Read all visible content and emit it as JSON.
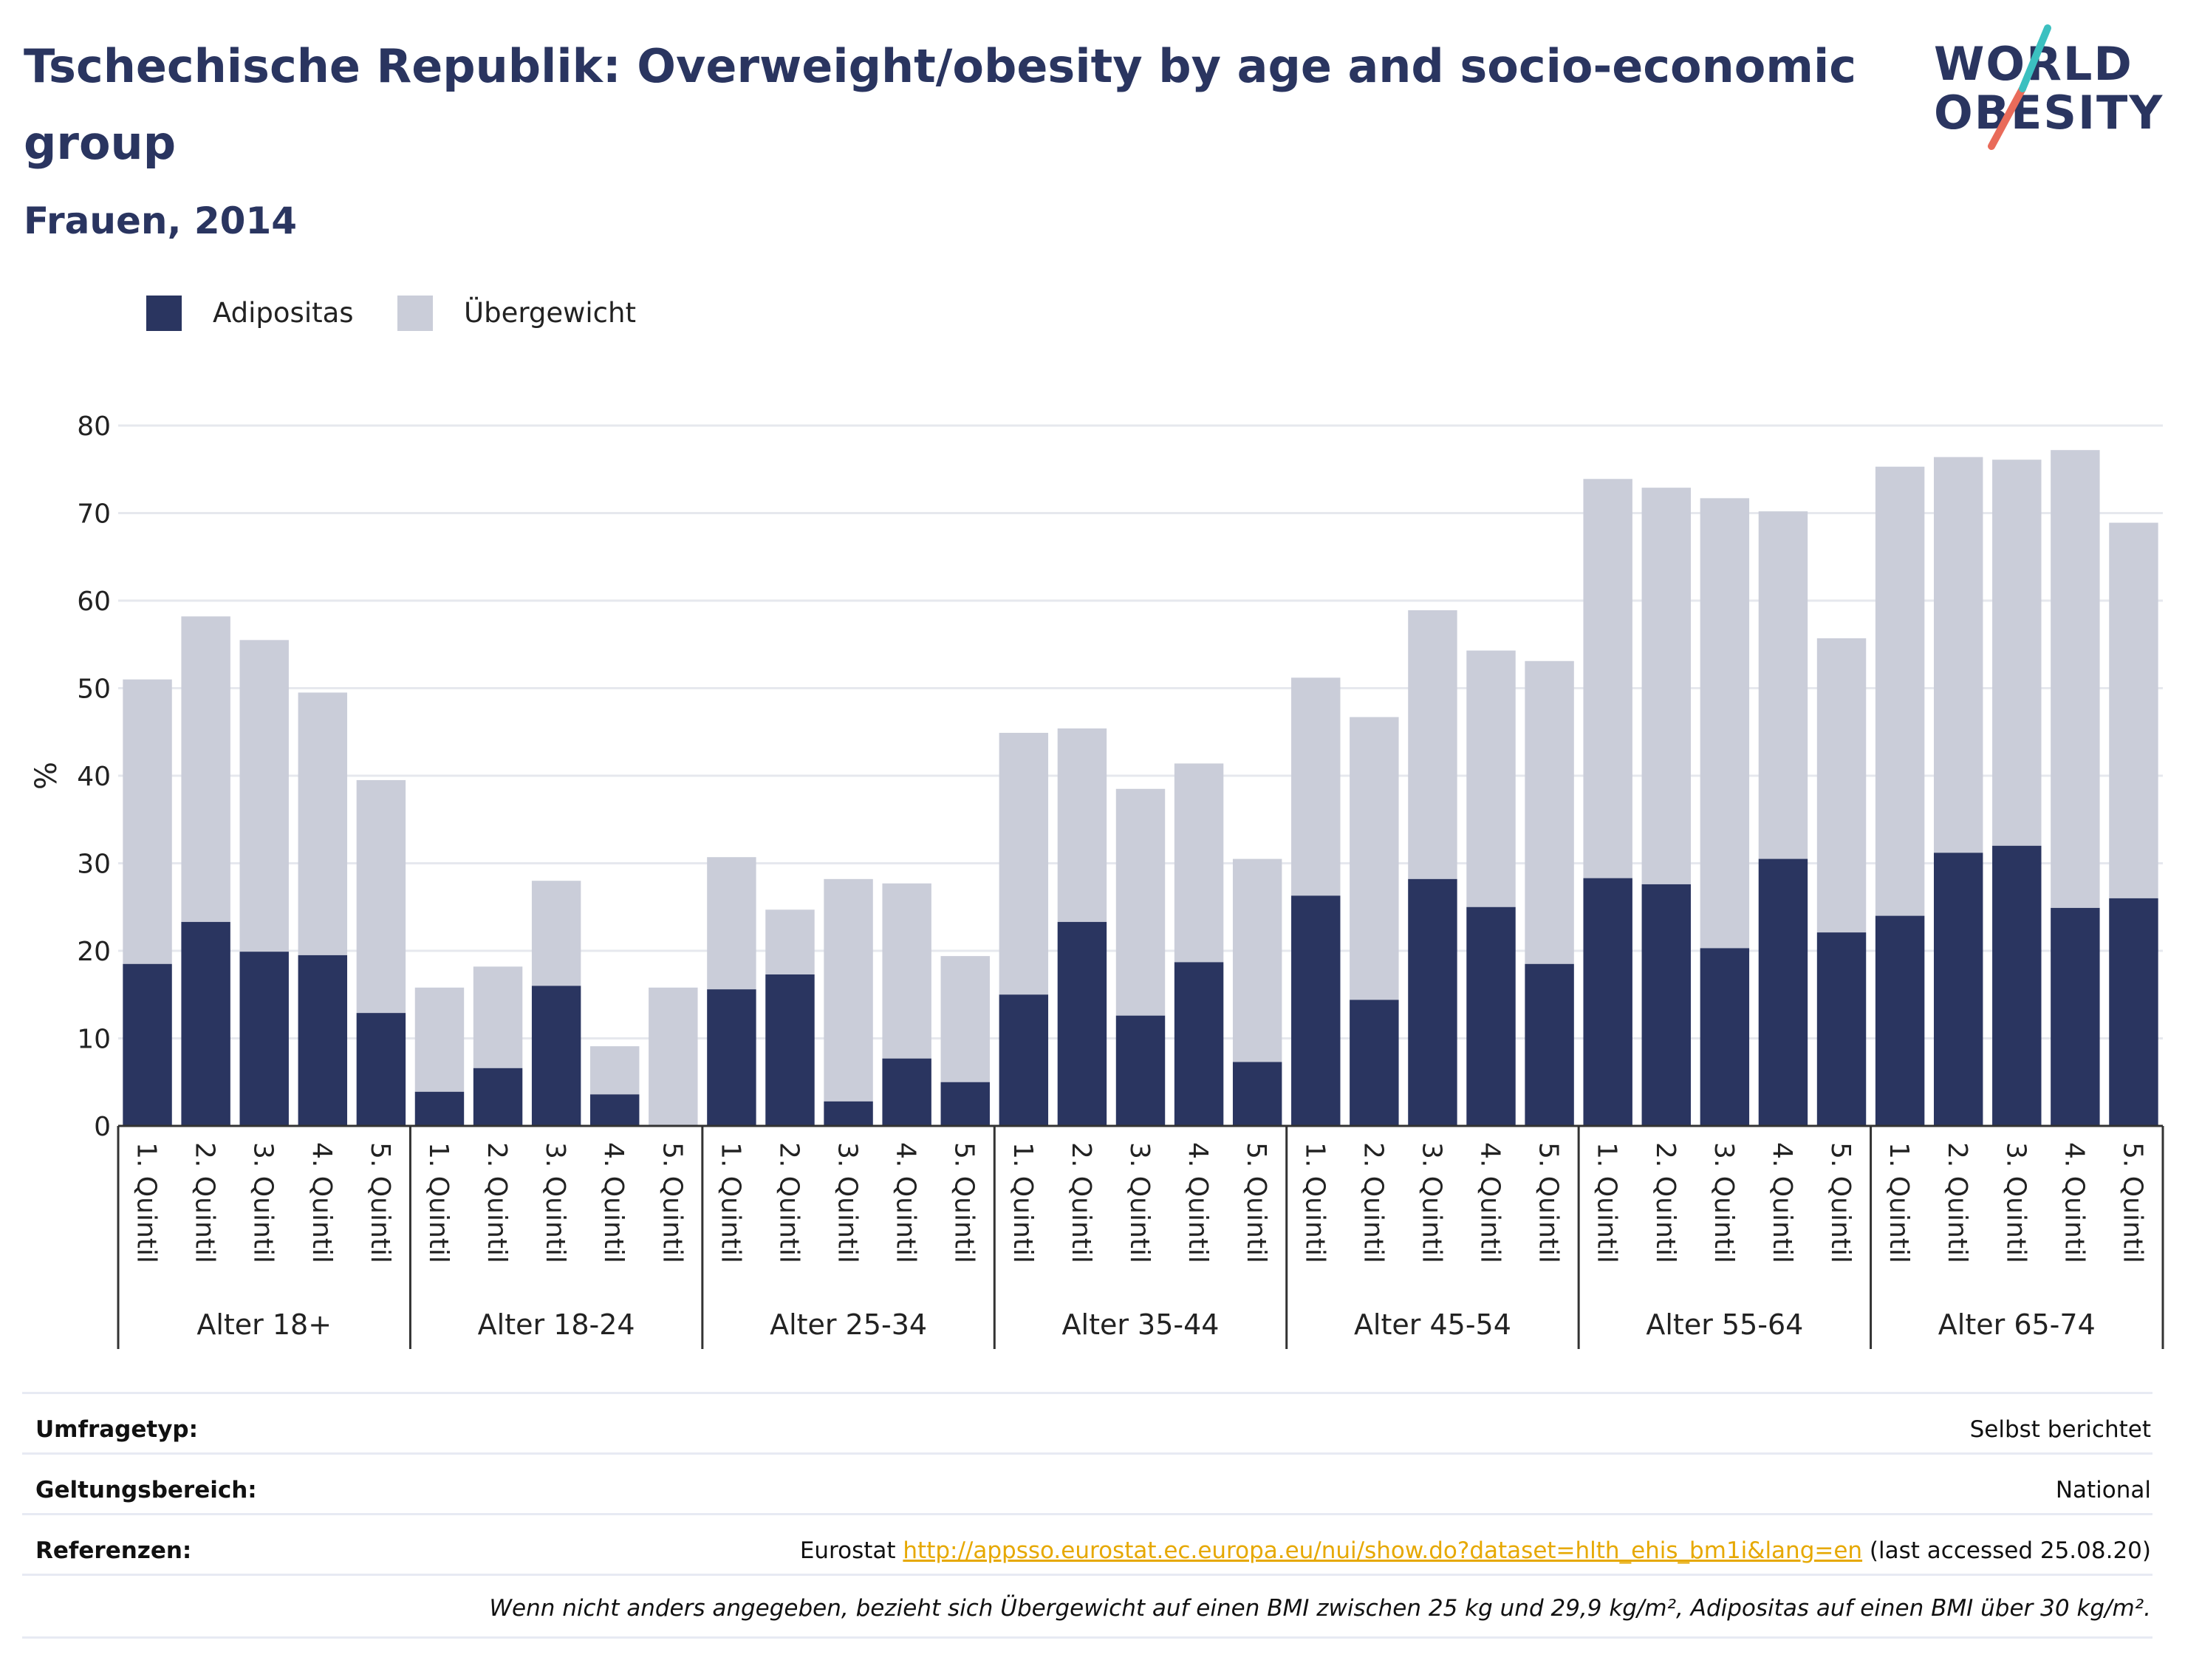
{
  "header": {
    "title": "Tschechische Republik: Overweight/obesity by age and socio-economic group",
    "subtitle": "Frauen, 2014"
  },
  "logo": {
    "line1": "WORLD",
    "line2": "OBESITY"
  },
  "colors": {
    "obesity": "#2a3560",
    "overweight": "#cacdd9",
    "grid": "#e6e8ee",
    "axis": "#333333",
    "link": "#e6a800",
    "logo_teal": "#3cc0c0",
    "logo_coral": "#e96b5a"
  },
  "chart_data": {
    "type": "bar",
    "stacked": true,
    "ylabel": "%",
    "ylim": [
      0,
      80
    ],
    "yticks": [
      0,
      10,
      20,
      30,
      40,
      50,
      60,
      70,
      80
    ],
    "grid": true,
    "legend_position": "top-left",
    "groups": [
      "Alter 18+",
      "Alter 18-24",
      "Alter 25-34",
      "Alter 35-44",
      "Alter 45-54",
      "Alter 55-64",
      "Alter 65-74"
    ],
    "categories": [
      "1. Quintil",
      "2. Quintil",
      "3. Quintil",
      "4. Quintil",
      "5. Quintil"
    ],
    "series": [
      {
        "name": "Adipositas",
        "values": [
          [
            18.5,
            23.3,
            19.9,
            19.5,
            12.9
          ],
          [
            3.9,
            6.6,
            16.0,
            3.6,
            0
          ],
          [
            15.6,
            17.3,
            2.8,
            7.7,
            5.0
          ],
          [
            15.0,
            23.3,
            12.6,
            18.7,
            7.3
          ],
          [
            26.3,
            14.4,
            28.2,
            25.0,
            18.5
          ],
          [
            28.3,
            27.6,
            20.3,
            30.5,
            22.1
          ],
          [
            24.0,
            31.2,
            32.0,
            24.9,
            26.0
          ]
        ]
      },
      {
        "name": "Übergewicht",
        "values": [
          [
            32.5,
            34.9,
            35.6,
            30.0,
            26.6
          ],
          [
            11.9,
            11.6,
            12.0,
            5.5,
            15.8
          ],
          [
            15.1,
            7.4,
            25.4,
            20.0,
            14.4
          ],
          [
            29.9,
            22.1,
            25.9,
            22.7,
            23.2
          ],
          [
            24.9,
            32.3,
            30.7,
            29.3,
            34.6
          ],
          [
            45.6,
            45.3,
            51.4,
            39.7,
            33.6
          ],
          [
            51.3,
            45.2,
            44.1,
            52.3,
            42.9
          ]
        ]
      }
    ]
  },
  "info": {
    "survey_label": "Umfragetyp:",
    "survey_value": "Selbst berichtet",
    "scope_label": "Geltungsbereich:",
    "scope_value": "National",
    "refs_label": "Referenzen:",
    "refs_prefix": "Eurostat ",
    "refs_link": "http://appsso.eurostat.ec.europa.eu/nui/show.do?dataset=hlth_ehis_bm1i&lang=en",
    "refs_suffix": " (last accessed 25.08.20)",
    "note": "Wenn nicht anders angegeben, bezieht sich Übergewicht auf einen BMI zwischen 25 kg und 29,9 kg/m², Adipositas auf einen BMI über 30 kg/m²."
  }
}
